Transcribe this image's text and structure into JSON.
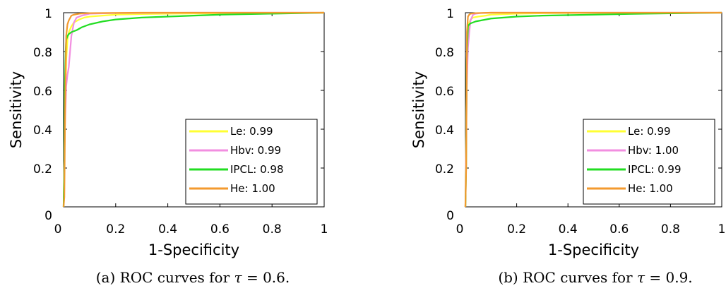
{
  "chart_data": [
    {
      "type": "line",
      "caption": "(a) ROC curves for τ = 0.6.",
      "caption_parts": {
        "prefix": "(a) ROC curves for ",
        "symbol": "τ",
        "suffix": " = 0.6."
      },
      "xlabel": "1-Specificity",
      "ylabel": "Sensitivity",
      "xlim": [
        0,
        1
      ],
      "ylim": [
        0,
        1
      ],
      "x_ticks": [
        {
          "value": 0,
          "label": "0"
        },
        {
          "value": 0.2,
          "label": "0.2"
        },
        {
          "value": 0.4,
          "label": "0.4"
        },
        {
          "value": 0.6,
          "label": "0.6"
        },
        {
          "value": 0.8,
          "label": "0.8"
        },
        {
          "value": 1,
          "label": "1"
        }
      ],
      "y_ticks": [
        {
          "value": 0,
          "label": "0"
        },
        {
          "value": 0.2,
          "label": "0.2"
        },
        {
          "value": 0.4,
          "label": "0.4"
        },
        {
          "value": 0.6,
          "label": "0.6"
        },
        {
          "value": 0.8,
          "label": "0.8"
        },
        {
          "value": 1,
          "label": "1"
        }
      ],
      "grid": false,
      "legend_position": "bottom-right",
      "series": [
        {
          "name": "Le: 0.99",
          "color": "#ffff33",
          "x": [
            0,
            0.005,
            0.01,
            0.015,
            0.02,
            0.03,
            0.04,
            0.06,
            0.08,
            0.1,
            0.15,
            0.2,
            0.3,
            0.5,
            0.7,
            1
          ],
          "y": [
            0,
            0.4,
            0.75,
            0.86,
            0.9,
            0.93,
            0.95,
            0.965,
            0.975,
            0.98,
            0.985,
            0.99,
            0.993,
            0.996,
            0.998,
            1
          ]
        },
        {
          "name": "Hbv: 0.99",
          "color": "#f28ee0",
          "x": [
            0,
            0.005,
            0.01,
            0.015,
            0.02,
            0.025,
            0.03,
            0.04,
            0.05,
            0.07,
            0.1,
            0.2,
            0.5,
            1
          ],
          "y": [
            0,
            0.4,
            0.62,
            0.68,
            0.72,
            0.8,
            0.88,
            0.95,
            0.975,
            0.985,
            0.995,
            0.998,
            1,
            1
          ]
        },
        {
          "name": "IPCL: 0.98",
          "color": "#22dd22",
          "x": [
            0,
            0.003,
            0.005,
            0.008,
            0.01,
            0.015,
            0.02,
            0.03,
            0.05,
            0.07,
            0.1,
            0.15,
            0.2,
            0.3,
            0.4,
            0.6,
            0.8,
            1
          ],
          "y": [
            0,
            0.2,
            0.62,
            0.8,
            0.86,
            0.88,
            0.89,
            0.9,
            0.91,
            0.925,
            0.94,
            0.955,
            0.965,
            0.975,
            0.98,
            0.99,
            0.995,
            1
          ]
        },
        {
          "name": "He: 1.00",
          "color": "#f39a2e",
          "x": [
            0,
            0.003,
            0.006,
            0.01,
            0.015,
            0.02,
            0.03,
            0.04,
            0.06,
            0.1,
            0.3,
            1
          ],
          "y": [
            0,
            0.05,
            0.5,
            0.88,
            0.94,
            0.96,
            0.985,
            0.99,
            0.995,
            0.998,
            1,
            1
          ]
        }
      ]
    },
    {
      "type": "line",
      "caption": "(b) ROC curves for τ = 0.9.",
      "caption_parts": {
        "prefix": "(b) ROC curves for ",
        "symbol": "τ",
        "suffix": " = 0.9."
      },
      "xlabel": "1-Specificity",
      "ylabel": "Sensitivity",
      "xlim": [
        0,
        1
      ],
      "ylim": [
        0,
        1
      ],
      "x_ticks": [
        {
          "value": 0,
          "label": "0"
        },
        {
          "value": 0.2,
          "label": "0.2"
        },
        {
          "value": 0.4,
          "label": "0.4"
        },
        {
          "value": 0.6,
          "label": "0.6"
        },
        {
          "value": 0.8,
          "label": "0.8"
        },
        {
          "value": 1,
          "label": "1"
        }
      ],
      "y_ticks": [
        {
          "value": 0,
          "label": "0"
        },
        {
          "value": 0.2,
          "label": "0.2"
        },
        {
          "value": 0.4,
          "label": "0.4"
        },
        {
          "value": 0.6,
          "label": "0.6"
        },
        {
          "value": 0.8,
          "label": "0.8"
        },
        {
          "value": 1,
          "label": "1"
        }
      ],
      "grid": false,
      "legend_position": "bottom-right",
      "series": [
        {
          "name": "Le: 0.99",
          "color": "#ffff33",
          "x": [
            0,
            0.005,
            0.01,
            0.015,
            0.02,
            0.03,
            0.05,
            0.08,
            0.1,
            0.2,
            0.3,
            0.5,
            1
          ],
          "y": [
            0,
            0.65,
            0.9,
            0.95,
            0.965,
            0.975,
            0.98,
            0.985,
            0.99,
            0.995,
            0.997,
            0.999,
            1
          ]
        },
        {
          "name": "Hbv: 1.00",
          "color": "#f28ee0",
          "x": [
            0,
            0.005,
            0.01,
            0.015,
            0.02,
            0.03,
            0.04,
            0.06,
            0.1,
            0.2,
            1
          ],
          "y": [
            0,
            0.6,
            0.82,
            0.9,
            0.96,
            0.99,
            0.995,
            0.998,
            1,
            1,
            1
          ]
        },
        {
          "name": "IPCL: 0.99",
          "color": "#22dd22",
          "x": [
            0,
            0.003,
            0.005,
            0.01,
            0.015,
            0.02,
            0.04,
            0.06,
            0.1,
            0.15,
            0.2,
            0.3,
            0.5,
            0.7,
            1
          ],
          "y": [
            0,
            0.22,
            0.75,
            0.93,
            0.94,
            0.945,
            0.955,
            0.96,
            0.97,
            0.975,
            0.98,
            0.985,
            0.99,
            0.995,
            1
          ]
        },
        {
          "name": "He: 1.00",
          "color": "#f39a2e",
          "x": [
            0,
            0.003,
            0.006,
            0.01,
            0.015,
            0.02,
            0.04,
            0.1,
            0.2,
            1
          ],
          "y": [
            0,
            0.2,
            0.9,
            0.98,
            0.99,
            0.995,
            0.998,
            1,
            1,
            1
          ]
        }
      ]
    }
  ]
}
